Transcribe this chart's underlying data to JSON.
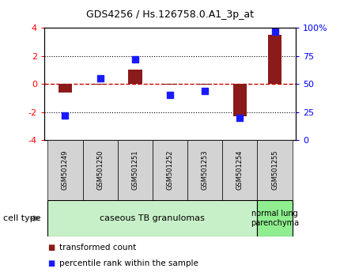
{
  "title": "GDS4256 / Hs.126758.0.A1_3p_at",
  "samples": [
    "GSM501249",
    "GSM501250",
    "GSM501251",
    "GSM501252",
    "GSM501253",
    "GSM501254",
    "GSM501255"
  ],
  "red_values": [
    -0.6,
    -0.05,
    1.05,
    -0.05,
    -0.05,
    -2.3,
    3.5
  ],
  "blue_values_pct": [
    22,
    55,
    72,
    40,
    44,
    20,
    97
  ],
  "ylim_left": [
    -4,
    4
  ],
  "ylim_right": [
    0,
    100
  ],
  "yticks_left": [
    -4,
    -2,
    0,
    2,
    4
  ],
  "yticks_right": [
    0,
    25,
    50,
    75,
    100
  ],
  "ytick_labels_right": [
    "0",
    "25",
    "50",
    "75",
    "100%"
  ],
  "hlines": [
    2,
    -2
  ],
  "red_color": "#8B1A1A",
  "blue_color": "#1a1aff",
  "dashed_line_color": "#cc0000",
  "bg_color": "#ffffff",
  "plot_bg": "#ffffff",
  "cell_type_label": "cell type",
  "group1_label": "caseous TB granulomas",
  "group2_label": "normal lung\nparenchyma",
  "group1_samples": [
    0,
    1,
    2,
    3,
    4,
    5
  ],
  "group2_samples": [
    6
  ],
  "group1_color": "#c8f0c8",
  "group2_color": "#90ee90",
  "legend_red": "transformed count",
  "legend_blue": "percentile rank within the sample",
  "bar_width": 0.4,
  "label_bg": "#d3d3d3"
}
